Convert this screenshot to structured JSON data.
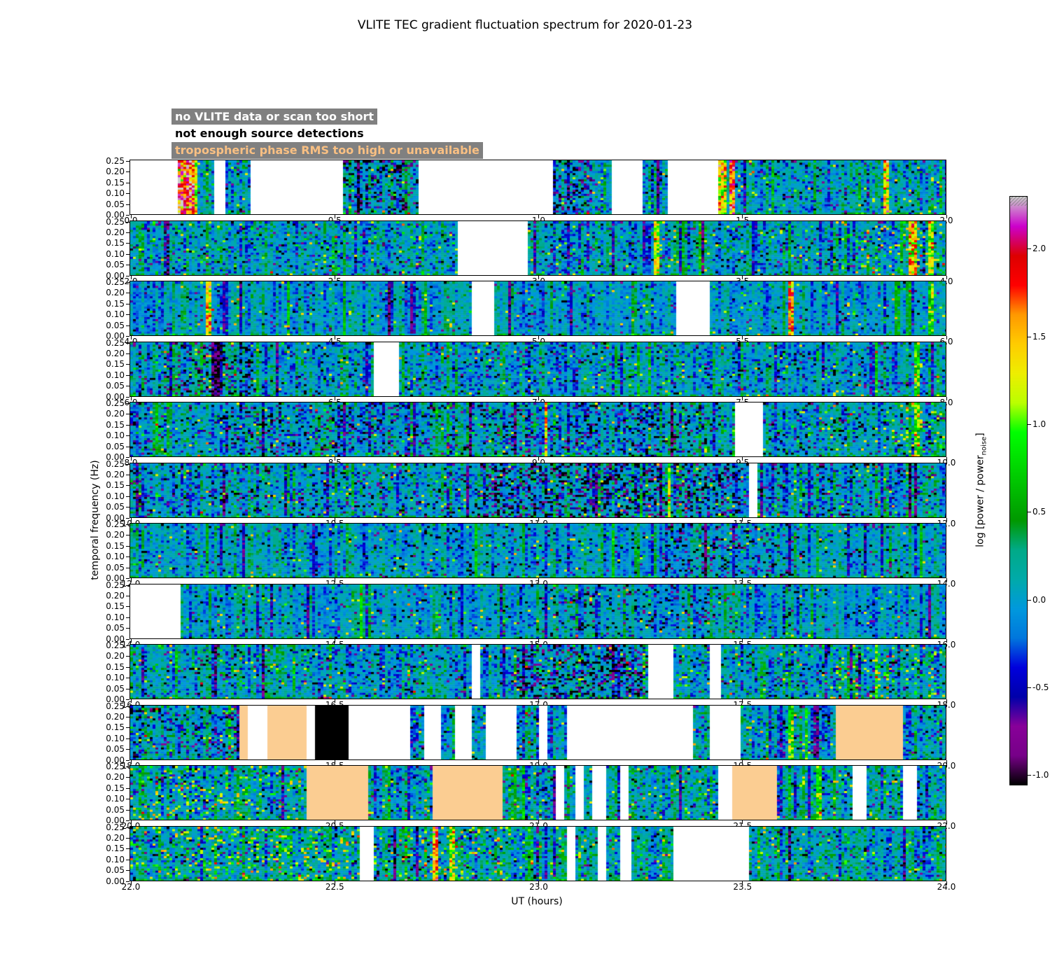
{
  "title": "VLITE TEC gradient fluctuation spectrum for 2020-01-23",
  "legend": {
    "items": [
      {
        "label": "no VLITE data or scan too short",
        "text_color": "#ffffff",
        "bg_color": "#808080"
      },
      {
        "label": "not enough source detections",
        "text_color": "#000000",
        "bg_color": "#ffffff"
      },
      {
        "label": "tropospheric phase RMS too high or unavailable",
        "text_color": "#f9c083",
        "bg_color": "#808080"
      }
    ]
  },
  "chart_data": {
    "type": "heatmap",
    "title": "VLITE TEC gradient fluctuation spectrum for 2020-01-23",
    "xlabel": "UT (hours)",
    "ylabel": "temporal frequency (Hz)",
    "x_total_range": [
      0,
      24
    ],
    "y_range": [
      0.0,
      0.25
    ],
    "y_ticks": [
      "0.25",
      "0.20",
      "0.15",
      "0.10",
      "0.05",
      "0.00"
    ],
    "x_tick_step": 0.5,
    "colormap": "nipy_spectral",
    "colorbar": {
      "label_pre": "log [power / power",
      "label_sub": "noise",
      "label_post": "]",
      "ticks": [
        "2.0",
        "1.5",
        "1.0",
        "0.5",
        "0.0",
        "-0.5",
        "-1.0"
      ],
      "vmin": -1.05,
      "vmax": 2.3
    },
    "value_colors": {
      "no_data_gap": "#ffffff",
      "tropospheric_rms_block": "#fbcd92",
      "not_enough_detections_block": "#000000"
    },
    "panels": [
      {
        "x_range": [
          0,
          2
        ],
        "gaps": [
          [
            0,
            0.115
          ],
          [
            0.205,
            0.235
          ],
          [
            0.295,
            0.525
          ],
          [
            0.71,
            1.04
          ],
          [
            1.18,
            1.255
          ],
          [
            1.32,
            1.44
          ]
        ],
        "streaks": [
          {
            "x": 0.135,
            "w": 0.04,
            "v": 1.9
          },
          {
            "x": 0.16,
            "w": 0.015,
            "v": 1.2
          },
          {
            "x": 0.56,
            "w": 0.01,
            "v": -0.9
          },
          {
            "x": 1.455,
            "w": 0.02,
            "v": 1.3
          },
          {
            "x": 1.478,
            "w": 0.014,
            "v": 1.7
          },
          {
            "x": 1.855,
            "w": 0.01,
            "v": 1.4
          }
        ],
        "neg_regions": [
          [
            0.525,
            0.71,
            0.15
          ],
          [
            1.04,
            1.13,
            0.2
          ]
        ],
        "speckle_pos": 0.03,
        "speckle_neg": 0.05
      },
      {
        "x_range": [
          2,
          4
        ],
        "gaps": [
          [
            2.805,
            2.975
          ]
        ],
        "streaks": [
          {
            "x": 2.09,
            "w": 0.01,
            "v": -0.7
          },
          {
            "x": 3.29,
            "w": 0.012,
            "v": 1.25
          },
          {
            "x": 3.92,
            "w": 0.02,
            "v": 1.5
          },
          {
            "x": 3.965,
            "w": 0.012,
            "v": 1.1
          }
        ],
        "pos_regions": [
          [
            3.78,
            4.0,
            0.08
          ]
        ],
        "speckle_pos": 0.035,
        "speckle_neg": 0.05
      },
      {
        "x_range": [
          4,
          6
        ],
        "gaps": [
          [
            4.84,
            4.89
          ],
          [
            5.34,
            5.42
          ]
        ],
        "streaks": [
          {
            "x": 4.19,
            "w": 0.012,
            "v": 1.3
          },
          {
            "x": 5.62,
            "w": 0.015,
            "v": 1.6
          },
          {
            "x": 5.965,
            "w": 0.01,
            "v": 0.9
          }
        ],
        "sigma": 0.15,
        "speckle_pos": 0.02,
        "speckle_neg": 0.03
      },
      {
        "x_range": [
          6,
          8
        ],
        "gaps": [
          [
            6.6,
            6.66
          ]
        ],
        "streaks": [
          {
            "x": 6.21,
            "w": 0.015,
            "v": -1.0
          },
          {
            "x": 7.93,
            "w": 0.01,
            "v": 0.9
          }
        ],
        "neg_regions": [
          [
            6.08,
            6.3,
            0.22
          ]
        ],
        "speckle_pos": 0.025,
        "speckle_neg": 0.05
      },
      {
        "x_range": [
          8,
          10
        ],
        "gaps": [
          [
            9.485,
            9.555
          ]
        ],
        "streaks": [
          {
            "x": 9.02,
            "w": 0.008,
            "v": 1.5
          },
          {
            "x": 9.93,
            "w": 0.012,
            "v": 1.0
          }
        ],
        "neg_regions": [
          [
            8.25,
            9.45,
            0.08
          ]
        ],
        "pos_regions": [
          [
            9.85,
            10.0,
            0.12
          ]
        ],
        "speckle_pos": 0.03,
        "speckle_neg": 0.07
      },
      {
        "x_range": [
          10,
          12
        ],
        "gaps": [
          [
            11.515,
            11.54
          ]
        ],
        "streaks": [
          {
            "x": 11.32,
            "w": 0.008,
            "v": 1.3
          }
        ],
        "neg_regions": [
          [
            10.85,
            11.5,
            0.2
          ]
        ],
        "speckle_pos": 0.035,
        "speckle_neg": 0.09
      },
      {
        "x_range": [
          12,
          14
        ],
        "gaps": [],
        "streaks": [],
        "neg_regions": [
          [
            13.3,
            13.65,
            0.1
          ]
        ],
        "sigma": 0.16,
        "speckle_pos": 0.025,
        "speckle_neg": 0.04
      },
      {
        "x_range": [
          14,
          16
        ],
        "gaps": [
          [
            14,
            14.125
          ]
        ],
        "streaks": [],
        "neg_regions": [
          [
            15.0,
            15.45,
            0.1
          ]
        ],
        "sigma": 0.15,
        "speckle_pos": 0.02,
        "speckle_neg": 0.035
      },
      {
        "x_range": [
          16,
          18
        ],
        "gaps": [
          [
            16.835,
            16.855
          ],
          [
            17.27,
            17.335
          ],
          [
            17.42,
            17.45
          ]
        ],
        "streaks": [
          {
            "x": 16.21,
            "w": 0.008,
            "v": -0.8
          },
          {
            "x": 17.83,
            "w": 0.012,
            "v": 1.0
          }
        ],
        "neg_regions": [
          [
            16.95,
            17.27,
            0.22
          ]
        ],
        "pos_regions": [
          [
            17.7,
            17.98,
            0.1
          ]
        ],
        "speckle_pos": 0.03,
        "speckle_neg": 0.06
      },
      {
        "x_range": [
          18,
          20
        ],
        "gaps": [
          [
            18.29,
            18.335
          ],
          [
            18.43,
            18.455
          ],
          [
            18.535,
            18.69
          ],
          [
            18.72,
            18.76
          ],
          [
            18.8,
            18.84
          ],
          [
            18.87,
            18.95
          ],
          [
            19.0,
            19.02
          ],
          [
            19.07,
            19.38
          ],
          [
            19.42,
            19.495
          ]
        ],
        "tan": [
          [
            18.265,
            18.29
          ],
          [
            18.335,
            18.43
          ],
          [
            19.73,
            19.895
          ]
        ],
        "black": [
          [
            18.455,
            18.535
          ]
        ],
        "streaks": [
          {
            "x": 19.62,
            "w": 0.01,
            "v": 0.8
          }
        ],
        "neg_regions": [
          [
            18.0,
            18.27,
            0.1
          ]
        ],
        "speckle_pos": 0.03,
        "speckle_neg": 0.05
      },
      {
        "x_range": [
          20,
          22
        ],
        "gaps": [
          [
            21.045,
            21.065
          ],
          [
            21.09,
            21.11
          ],
          [
            21.13,
            21.17
          ],
          [
            21.205,
            21.225
          ],
          [
            21.44,
            21.475
          ],
          [
            21.77,
            21.805
          ],
          [
            21.895,
            21.93
          ]
        ],
        "tan": [
          [
            20.43,
            20.585
          ],
          [
            20.745,
            20.915
          ],
          [
            21.475,
            21.585
          ]
        ],
        "streaks": [
          {
            "x": 21.69,
            "w": 0.01,
            "v": 0.9
          }
        ],
        "pos_regions": [
          [
            20.0,
            20.42,
            0.08
          ]
        ],
        "base": 0.04,
        "speckle_pos": 0.04,
        "speckle_neg": 0.05
      },
      {
        "x_range": [
          22,
          24
        ],
        "gaps": [
          [
            22.56,
            22.6
          ],
          [
            23.07,
            23.095
          ],
          [
            23.145,
            23.165
          ],
          [
            23.2,
            23.23
          ],
          [
            23.335,
            23.52
          ]
        ],
        "streaks": [
          {
            "x": 22.75,
            "w": 0.015,
            "v": 1.6
          },
          {
            "x": 22.79,
            "w": 0.01,
            "v": 1.1
          },
          {
            "x": 23.62,
            "w": 0.008,
            "v": -0.8
          }
        ],
        "pos_regions": [
          [
            22.0,
            22.55,
            0.1
          ],
          [
            22.6,
            23.0,
            0.07
          ]
        ],
        "base": 0.06,
        "speckle_pos": 0.05,
        "speckle_neg": 0.05
      }
    ]
  }
}
